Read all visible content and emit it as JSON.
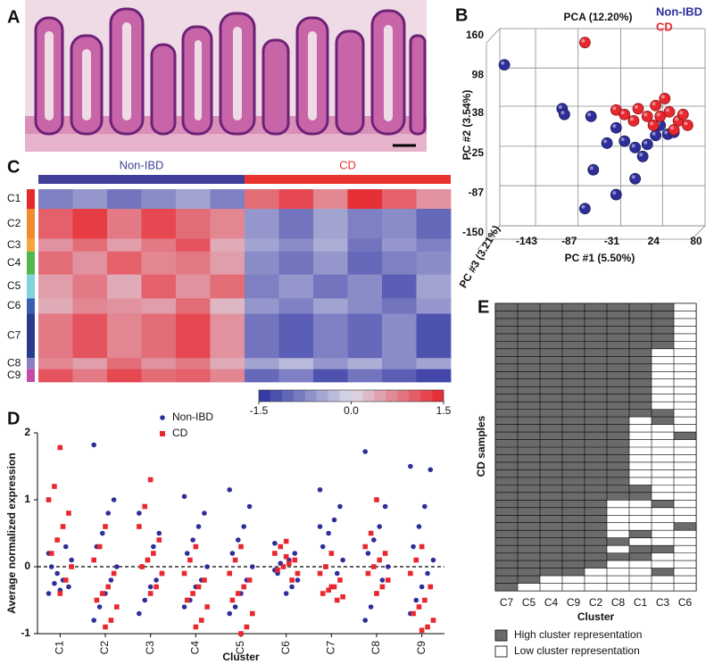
{
  "panel_labels": [
    "A",
    "B",
    "C",
    "D",
    "E"
  ],
  "chart_data": [
    {
      "type": "scatter3d",
      "title": "PCA (12.20%)",
      "xlabel": "PC #1 (5.50%)",
      "ylabel": "PC #2 (3.54%)",
      "zlabel": "PC #3 (3.21%)",
      "xlim": [
        -190,
        80
      ],
      "xticks": [
        -143,
        -87,
        -31,
        24,
        80
      ],
      "ylim": [
        -150,
        160
      ],
      "yticks": [
        -150,
        -87,
        -25,
        38,
        98,
        160
      ],
      "grid": true,
      "series": [
        {
          "name": "Non-IBD",
          "color": "#2e2e9a",
          "x": [
            -184,
            -108,
            -105,
            -70,
            -37,
            -49,
            -26,
            -12,
            -2,
            15,
            21,
            31,
            -67,
            -37,
            -12,
            -78,
            4,
            39
          ],
          "values": [
            103,
            34,
            25,
            22,
            4,
            -20,
            -17,
            -27,
            -41,
            -8,
            8,
            -6,
            -62,
            -101,
            -76,
            -123,
            -22,
            -3
          ]
        },
        {
          "name": "CD",
          "color": "#e8282e",
          "x": [
            -78,
            -37,
            -26,
            -8,
            4,
            15,
            21,
            33,
            45,
            51,
            57,
            27,
            12,
            39,
            -14
          ],
          "values": [
            138,
            32,
            25,
            34,
            22,
            39,
            22,
            29,
            15,
            25,
            8,
            50,
            8,
            1,
            15
          ]
        }
      ]
    },
    {
      "type": "heatmap",
      "groups": [
        {
          "name": "Non-IBD",
          "color": "#3f3f9a"
        },
        {
          "name": "CD",
          "color": "#e8322e"
        }
      ],
      "rows": [
        {
          "name": "C1",
          "color": "#e32b2b",
          "values": [
            [
              -0.8,
              -0.6,
              -0.9,
              -0.7,
              -0.5,
              -0.8
            ],
            [
              0.9,
              1.2,
              0.7,
              1.4,
              1.0,
              0.6
            ]
          ]
        },
        {
          "name": "C2",
          "color": "#f08a2a",
          "values": [
            [
              1.0,
              1.3,
              0.8,
              1.2,
              0.9,
              0.7
            ],
            [
              -0.6,
              -0.9,
              -0.5,
              -0.8,
              -0.7,
              -1.0
            ]
          ]
        },
        {
          "name": "C3",
          "color": "#f4a63a",
          "values": [
            [
              0.6,
              0.9,
              0.5,
              0.8,
              1.1,
              0.4
            ],
            [
              -0.5,
              -0.7,
              -0.4,
              -0.9,
              -0.6,
              -0.8
            ]
          ]
        },
        {
          "name": "C4",
          "color": "#4fb848",
          "values": [
            [
              0.9,
              0.6,
              1.0,
              0.7,
              0.8,
              0.5
            ],
            [
              -0.7,
              -0.9,
              -0.6,
              -1.0,
              -0.8,
              -0.7
            ]
          ]
        },
        {
          "name": "C5",
          "color": "#7fd3df",
          "values": [
            [
              0.5,
              0.8,
              0.4,
              1.0,
              0.6,
              0.9
            ],
            [
              -0.8,
              -0.6,
              -0.9,
              -0.7,
              -1.1,
              -0.5
            ]
          ]
        },
        {
          "name": "C6",
          "color": "#3a5fb0",
          "values": [
            [
              0.4,
              0.7,
              0.6,
              0.5,
              0.9,
              0.3
            ],
            [
              -0.6,
              -0.8,
              -0.5,
              -0.7,
              -0.9,
              -0.6
            ]
          ]
        },
        {
          "name": "C7",
          "color": "#2c3a8c",
          "values": [
            [
              0.8,
              1.1,
              0.7,
              0.9,
              1.2,
              0.6
            ],
            [
              -0.9,
              -1.1,
              -0.8,
              -1.0,
              -0.7,
              -1.2
            ]
          ]
        },
        {
          "name": "C8",
          "color": "#8d7fc4",
          "values": [
            [
              0.7,
              0.5,
              0.9,
              0.6,
              0.8,
              0.4
            ],
            [
              -0.5,
              -0.3,
              -0.6,
              -0.4,
              -0.7,
              -0.5
            ]
          ]
        },
        {
          "name": "C9",
          "color": "#c44aa8",
          "values": [
            [
              1.1,
              0.8,
              1.2,
              0.9,
              1.0,
              0.7
            ],
            [
              -1.0,
              -0.8,
              -1.2,
              -0.9,
              -1.1,
              -1.3
            ]
          ]
        }
      ],
      "colorscale": {
        "lim": [
          -1.5,
          1.5
        ],
        "ticks": [
          -1.5,
          {
            "value": 0,
            "label": "0.0"
          },
          1.5
        ],
        "colors": [
          "#2b30a0",
          "#dcdcea",
          "#e8232b"
        ]
      }
    },
    {
      "type": "strip",
      "ylabel": "Average normalized expression",
      "xlabel": "Cluster",
      "categories": [
        "C1",
        "C2",
        "C3",
        "C4",
        "C5",
        "C6",
        "C7",
        "C8",
        "C9"
      ],
      "ylim": [
        -1,
        2
      ],
      "yticks": [
        -1,
        0,
        1,
        2
      ],
      "hline": 0,
      "series": [
        {
          "name": "Non-IBD",
          "color": "#2e2e9a",
          "values": [
            [
              -0.4,
              -0.3,
              -0.2,
              -0.1,
              0,
              0.1,
              0.3,
              -0.35,
              -0.25,
              0.2
            ],
            [
              1.82,
              1.0,
              0.8,
              0.5,
              0.3,
              0,
              -0.2,
              -0.4,
              -0.6,
              -0.8
            ],
            [
              0.8,
              0.5,
              0.3,
              0.1,
              0,
              -0.1,
              -0.2,
              -0.3,
              -0.5,
              -0.7
            ],
            [
              1.05,
              0.8,
              0.6,
              0.4,
              0.2,
              0,
              -0.2,
              -0.3,
              -0.5,
              -0.6
            ],
            [
              1.15,
              0.9,
              0.6,
              0.4,
              0.2,
              0,
              -0.2,
              -0.4,
              -0.6,
              -0.7
            ],
            [
              0.35,
              0.2,
              0.1,
              0,
              -0.1,
              -0.2,
              -0.3,
              -0.4,
              0.05,
              -0.05
            ],
            [
              1.15,
              0.9,
              0.7,
              0.5,
              0.3,
              0.1,
              -0.1,
              -0.3,
              0,
              0.6
            ],
            [
              1.72,
              0.9,
              0.6,
              0.4,
              0.2,
              0,
              -0.2,
              -0.4,
              -0.6,
              -0.8
            ],
            [
              1.5,
              1.45,
              0.9,
              0.6,
              0.3,
              0.1,
              -0.1,
              -0.3,
              -0.5,
              -0.7
            ]
          ]
        },
        {
          "name": "CD",
          "color": "#e8282e",
          "values": [
            [
              1.78,
              1.2,
              1.0,
              0.8,
              0.6,
              0.4,
              0.2,
              0,
              -0.2,
              -0.4
            ],
            [
              0.6,
              0.3,
              0.1,
              -0.1,
              -0.3,
              -0.4,
              -0.5,
              -0.6,
              -0.8,
              -0.9
            ],
            [
              1.3,
              0.9,
              0.6,
              0.4,
              0.2,
              0.1,
              0,
              -0.1,
              -0.3,
              -0.4
            ],
            [
              0.3,
              0.1,
              -0.1,
              -0.2,
              -0.3,
              -0.4,
              -0.5,
              -0.6,
              -0.8,
              -0.9
            ],
            [
              0.3,
              0.1,
              -0.1,
              -0.2,
              -0.3,
              -0.4,
              -0.5,
              -0.7,
              -0.9,
              -1.0
            ],
            [
              0.38,
              0.3,
              0.2,
              0.1,
              0.05,
              0,
              -0.05,
              -0.1,
              -0.2,
              0.15
            ],
            [
              0.2,
              0,
              -0.1,
              -0.2,
              -0.3,
              -0.35,
              -0.4,
              -0.45,
              -0.5,
              -0.3
            ],
            [
              1.0,
              0.5,
              0.3,
              0.2,
              0.1,
              0,
              -0.1,
              -0.2,
              -0.3,
              -0.4
            ],
            [
              0.3,
              0.1,
              -0.1,
              -0.3,
              -0.5,
              -0.6,
              -0.7,
              -0.8,
              -0.9,
              -0.95
            ]
          ]
        }
      ]
    },
    {
      "type": "binary_grid",
      "ylabel": "CD samples",
      "xlabel": "Cluster",
      "categories": [
        "C7",
        "C5",
        "C4",
        "C9",
        "C2",
        "C8",
        "C1",
        "C3",
        "C6"
      ],
      "samples": 38,
      "low_rows": [
        [],
        [
          37
        ],
        [
          36,
          37
        ],
        [
          36,
          37
        ],
        [
          35,
          36,
          37
        ],
        [
          26,
          27,
          28,
          29,
          30,
          32,
          34,
          35,
          36,
          37
        ],
        [
          15,
          16,
          17,
          18,
          19,
          20,
          21,
          22,
          23,
          26,
          27,
          28,
          29,
          31,
          34,
          35,
          36,
          37
        ],
        [
          6,
          7,
          8,
          9,
          10,
          11,
          12,
          13,
          16,
          17,
          18,
          19,
          20,
          21,
          22,
          23,
          24,
          25,
          27,
          28,
          29,
          30,
          31,
          33,
          34,
          36,
          37
        ],
        [
          0,
          1,
          2,
          3,
          4,
          5,
          6,
          7,
          8,
          9,
          10,
          11,
          12,
          13,
          14,
          15,
          16,
          18,
          19,
          20,
          21,
          22,
          23,
          24,
          25,
          26,
          27,
          28,
          30,
          31,
          32,
          33,
          34,
          35,
          36,
          37
        ]
      ],
      "legend": [
        {
          "name": "High cluster representation",
          "color": "#6b6b6b"
        },
        {
          "name": "Low cluster representation",
          "color": "#ffffff"
        }
      ]
    }
  ]
}
